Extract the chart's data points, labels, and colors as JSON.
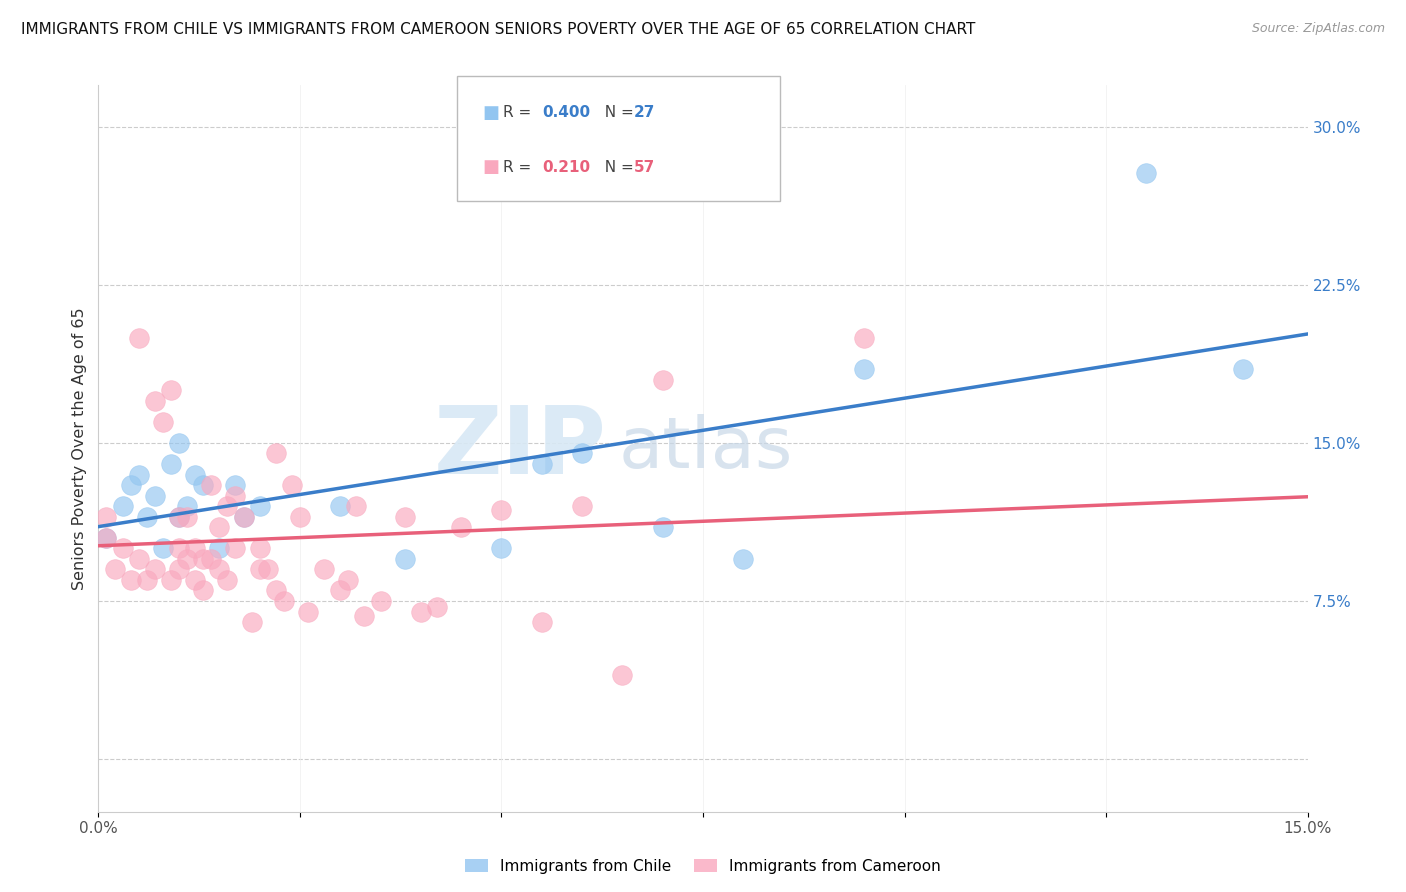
{
  "title": "IMMIGRANTS FROM CHILE VS IMMIGRANTS FROM CAMEROON SENIORS POVERTY OVER THE AGE OF 65 CORRELATION CHART",
  "source": "Source: ZipAtlas.com",
  "ylabel": "Seniors Poverty Over the Age of 65",
  "xlim": [
    0.0,
    0.15
  ],
  "ylim": [
    -0.025,
    0.32
  ],
  "yticks_right": [
    0.0,
    0.075,
    0.15,
    0.225,
    0.3
  ],
  "chile_color": "#92C5F0",
  "cameroon_color": "#F9A8BE",
  "chile_R": 0.4,
  "chile_N": 27,
  "cameroon_R": 0.21,
  "cameroon_N": 57,
  "chile_line_color": "#3A7DC9",
  "cameroon_line_color": "#E8607A",
  "watermark_zip": "ZIP",
  "watermark_atlas": "atlas",
  "chile_x": [
    0.001,
    0.003,
    0.004,
    0.005,
    0.006,
    0.007,
    0.008,
    0.009,
    0.01,
    0.01,
    0.011,
    0.012,
    0.013,
    0.015,
    0.017,
    0.018,
    0.02,
    0.03,
    0.038,
    0.05,
    0.055,
    0.06,
    0.07,
    0.08,
    0.095,
    0.13,
    0.142
  ],
  "chile_y": [
    0.105,
    0.12,
    0.13,
    0.135,
    0.115,
    0.125,
    0.1,
    0.14,
    0.15,
    0.115,
    0.12,
    0.135,
    0.13,
    0.1,
    0.13,
    0.115,
    0.12,
    0.12,
    0.095,
    0.1,
    0.14,
    0.145,
    0.11,
    0.095,
    0.185,
    0.278,
    0.185
  ],
  "cameroon_x": [
    0.001,
    0.001,
    0.002,
    0.003,
    0.004,
    0.005,
    0.005,
    0.006,
    0.007,
    0.007,
    0.008,
    0.009,
    0.009,
    0.01,
    0.01,
    0.01,
    0.011,
    0.011,
    0.012,
    0.012,
    0.013,
    0.013,
    0.014,
    0.014,
    0.015,
    0.015,
    0.016,
    0.016,
    0.017,
    0.017,
    0.018,
    0.019,
    0.02,
    0.02,
    0.021,
    0.022,
    0.022,
    0.023,
    0.024,
    0.025,
    0.026,
    0.028,
    0.03,
    0.031,
    0.032,
    0.033,
    0.035,
    0.038,
    0.04,
    0.042,
    0.045,
    0.05,
    0.055,
    0.06,
    0.065,
    0.07,
    0.095
  ],
  "cameroon_y": [
    0.105,
    0.115,
    0.09,
    0.1,
    0.085,
    0.2,
    0.095,
    0.085,
    0.09,
    0.17,
    0.16,
    0.175,
    0.085,
    0.1,
    0.115,
    0.09,
    0.115,
    0.095,
    0.1,
    0.085,
    0.095,
    0.08,
    0.13,
    0.095,
    0.11,
    0.09,
    0.12,
    0.085,
    0.125,
    0.1,
    0.115,
    0.065,
    0.09,
    0.1,
    0.09,
    0.145,
    0.08,
    0.075,
    0.13,
    0.115,
    0.07,
    0.09,
    0.08,
    0.085,
    0.12,
    0.068,
    0.075,
    0.115,
    0.07,
    0.072,
    0.11,
    0.118,
    0.065,
    0.12,
    0.04,
    0.18,
    0.2
  ]
}
